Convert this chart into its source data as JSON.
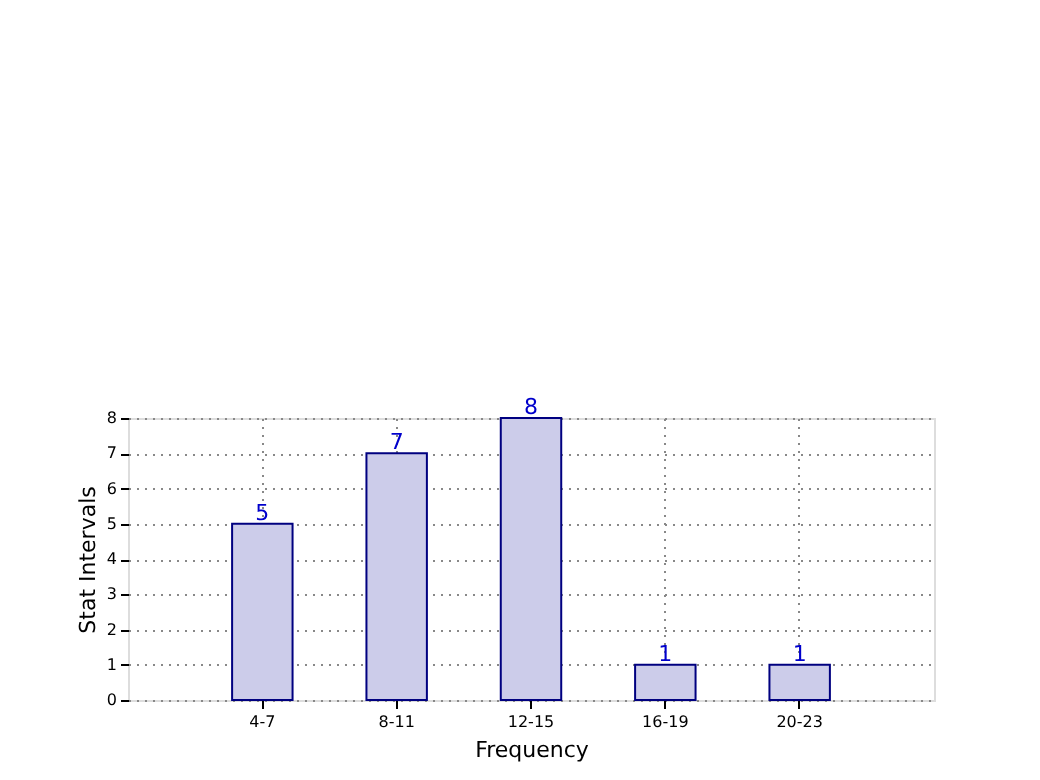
{
  "chart_data": {
    "type": "bar",
    "xlabel": "Frequency",
    "ylabel": "Stat Intervals",
    "categories": [
      "4-7",
      "8-11",
      "12-15",
      "16-19",
      "20-23"
    ],
    "values": [
      5,
      7,
      8,
      1,
      1
    ],
    "color": "#ccccea",
    "ylim": [
      0,
      8
    ],
    "yticks": [
      0,
      1,
      2,
      3,
      4,
      5,
      6,
      7,
      8
    ],
    "grid": true,
    "data_labels": true
  }
}
